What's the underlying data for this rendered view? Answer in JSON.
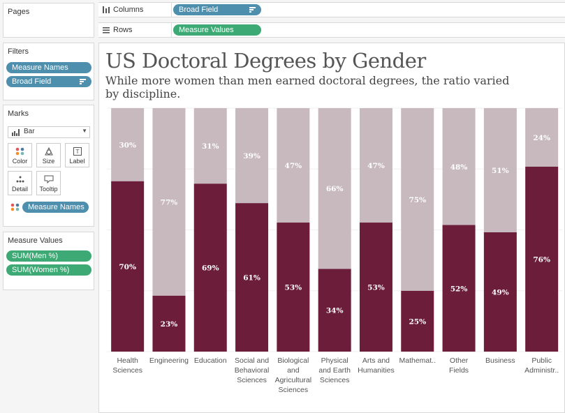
{
  "shelves": {
    "columns_label": "Columns",
    "columns_pill": "Broad Field",
    "rows_label": "Rows",
    "rows_pill": "Measure Values"
  },
  "pages": {
    "title": "Pages"
  },
  "filters": {
    "title": "Filters",
    "items": [
      "Measure Names",
      "Broad Field"
    ]
  },
  "marks": {
    "title": "Marks",
    "type": "Bar",
    "buttons": [
      "Color",
      "Size",
      "Label",
      "Detail",
      "Tooltip"
    ],
    "color_pill": "Measure Names"
  },
  "measure_values": {
    "title": "Measure Values",
    "items": [
      "SUM(Men %)",
      "SUM(Women %)"
    ]
  },
  "colors": {
    "men": "#6b1d3a",
    "women": "#c7b9bd",
    "blue_pill": "#4f8fae",
    "green_pill": "#3daa75"
  },
  "chart_data": {
    "type": "bar",
    "stacked": true,
    "title": "US Doctoral Degrees by Gender",
    "subtitle": "While more women than men earned doctoral degrees, the ratio varied by discipline.",
    "ylim": [
      0,
      100
    ],
    "categories": [
      [
        "Health",
        "Sciences"
      ],
      [
        "Engineering"
      ],
      [
        "Education"
      ],
      [
        "Social and",
        "Behavioral",
        "Sciences"
      ],
      [
        "Biological",
        "and",
        "Agricultural",
        "Sciences"
      ],
      [
        "Physical",
        "and Earth",
        "Sciences"
      ],
      [
        "Arts and",
        "Humanities"
      ],
      [
        "Mathemat.."
      ],
      [
        "Other",
        "Fields"
      ],
      [
        "Business"
      ],
      [
        "Public",
        "Administr.."
      ]
    ],
    "series": [
      {
        "name": "Men %",
        "values": [
          70,
          23,
          69,
          61,
          53,
          34,
          53,
          25,
          52,
          49,
          76
        ],
        "labels": [
          "70%",
          "23%",
          "69%",
          "61%",
          "53%",
          "34%",
          "53%",
          "25%",
          "52%",
          "49%",
          "76%"
        ]
      },
      {
        "name": "Women %",
        "values": [
          30,
          77,
          31,
          39,
          47,
          66,
          47,
          75,
          48,
          51,
          24
        ],
        "labels": [
          "30%",
          "77%",
          "31%",
          "39%",
          "47%",
          "66%",
          "47%",
          "75%",
          "48%",
          "51%",
          "24%"
        ]
      }
    ]
  }
}
